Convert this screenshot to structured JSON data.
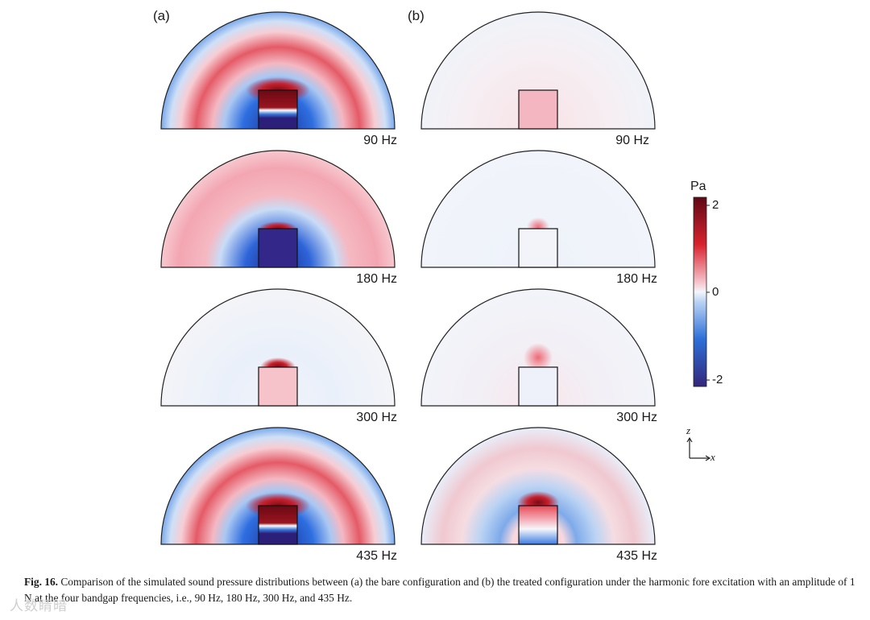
{
  "figure": {
    "panel_labels": [
      "(a)",
      "(b)"
    ],
    "frequencies": [
      "90 Hz",
      "180 Hz",
      "300 Hz",
      "435 Hz"
    ],
    "colorbar": {
      "unit": "Pa",
      "ticks": [
        "2",
        "0",
        "-2"
      ],
      "range": [
        -2,
        2
      ],
      "colors": {
        "positive_max": "#6a0a14",
        "positive_mid": "#e8323c",
        "zero": "#f4f6fa",
        "negative_mid": "#2c6fd8",
        "negative_max": "#352a7a"
      }
    },
    "axes": {
      "z": "z",
      "x": "x"
    }
  },
  "caption": {
    "label": "Fig. 16.",
    "text": " Comparison of the simulated sound pressure distributions between (a) the bare configuration and (b) the treated configuration under the harmonic fore excitation with an amplitude of 1 N at the four bandgap frequencies, i.e., 90 Hz, 180 Hz, 300 Hz, and 435 Hz."
  },
  "watermark": "人数睛暗"
}
